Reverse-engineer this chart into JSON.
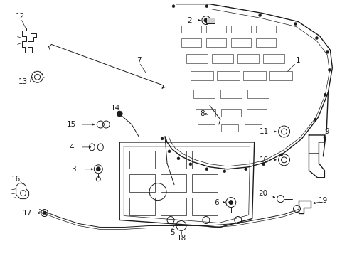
{
  "background_color": "#ffffff",
  "line_color": "#1a1a1a",
  "figsize": [
    4.89,
    3.6
  ],
  "dpi": 100,
  "font_size": 7.5,
  "lw_thick": 1.0,
  "lw_med": 0.7,
  "lw_thin": 0.5
}
